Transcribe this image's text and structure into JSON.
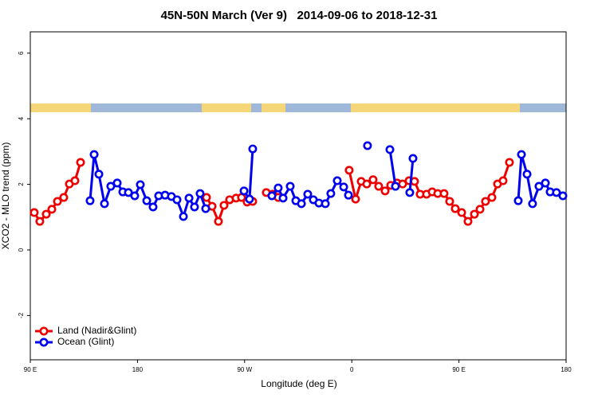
{
  "chart_data": {
    "type": "line",
    "title": "45N-50N March (Ver 9)   2014-09-06 to 2018-12-31",
    "xlabel": "Longitude (deg E)",
    "ylabel": "XCO2 - MLO trend (ppm)",
    "xlim": [
      90,
      540
    ],
    "ylim": [
      -3.35,
      6.65
    ],
    "xticks": [
      {
        "value": 90,
        "label": "90 E"
      },
      {
        "value": 180,
        "label": "180"
      },
      {
        "value": 270,
        "label": "90 W"
      },
      {
        "value": 360,
        "label": "0"
      },
      {
        "value": 450,
        "label": "90 E"
      },
      {
        "value": 540,
        "label": "180"
      }
    ],
    "yticks": [
      -2,
      0,
      2,
      4,
      6
    ],
    "legend": "bottom-left",
    "series": [
      {
        "name": "Land (Nadir&Glint)",
        "color": "#ee0000",
        "x": [
          93.3,
          98.0,
          103.4,
          108.1,
          112.8,
          118.1,
          122.8,
          127.5,
          132.2,
          null,
          238.0,
          242.7,
          248.0,
          252.7,
          257.4,
          262.8,
          267.4,
          272.1,
          276.8,
          null,
          288.2,
          293.6,
          298.2,
          null,
          357.8,
          363.2,
          367.9,
          372.6,
          377.9,
          382.6,
          388.0,
          392.7,
          398.0,
          402.7,
          408.1,
          412.7,
          417.4,
          422.8,
          427.5,
          432.2,
          437.5,
          442.2,
          446.9,
          452.3,
          457.6,
          463.0,
          467.7,
          472.3,
          477.7,
          482.4,
          487.1,
          492.4
        ],
        "values": [
          1.14,
          0.87,
          1.09,
          1.24,
          1.48,
          1.6,
          2.01,
          2.11,
          2.67,
          null,
          1.6,
          1.33,
          0.87,
          1.36,
          1.53,
          1.58,
          1.6,
          1.46,
          1.48,
          null,
          1.75,
          1.7,
          1.6,
          null,
          2.43,
          1.55,
          2.09,
          2.01,
          2.14,
          1.94,
          1.8,
          1.97,
          2.04,
          2.01,
          2.11,
          2.09,
          1.7,
          1.7,
          1.77,
          1.72,
          1.72,
          1.48,
          1.26,
          1.14,
          0.87,
          1.09,
          1.24,
          1.48,
          1.6,
          2.01,
          2.11,
          2.67
        ]
      },
      {
        "name": "Ocean (Glint)",
        "color": "#0000ee",
        "x": [
          140.2,
          143.6,
          147.6,
          152.3,
          157.6,
          163.0,
          167.7,
          172.4,
          177.7,
          182.4,
          187.8,
          193.1,
          197.8,
          203.2,
          208.5,
          213.2,
          218.6,
          223.3,
          227.9,
          232.6,
          237.3,
          null,
          269.5,
          274.1,
          276.8,
          null,
          292.9,
          298.2,
          302.3,
          308.3,
          313.0,
          317.7,
          323.0,
          327.7,
          332.4,
          337.8,
          342.4,
          347.8,
          353.2,
          357.2,
          null,
          373.2,
          null,
          392.0,
          396.7,
          null,
          408.7,
          411.4,
          null,
          499.8,
          502.5,
          507.2,
          511.8,
          517.2,
          522.6,
          526.6,
          531.9,
          537.3
        ],
        "values": [
          1.5,
          2.91,
          2.31,
          1.41,
          1.94,
          2.04,
          1.77,
          1.75,
          1.65,
          1.99,
          1.5,
          1.31,
          1.65,
          1.67,
          1.63,
          1.53,
          1.02,
          1.58,
          1.31,
          1.72,
          1.26,
          null,
          1.8,
          1.55,
          3.08,
          null,
          1.65,
          1.89,
          1.58,
          1.94,
          1.5,
          1.41,
          1.7,
          1.53,
          1.43,
          1.41,
          1.72,
          2.11,
          1.92,
          1.67,
          null,
          3.18,
          null,
          3.06,
          1.94,
          null,
          1.75,
          2.79,
          null,
          1.5,
          2.91,
          2.31,
          1.41,
          1.94,
          2.04,
          1.77,
          1.75,
          1.65
        ]
      }
    ]
  }
}
